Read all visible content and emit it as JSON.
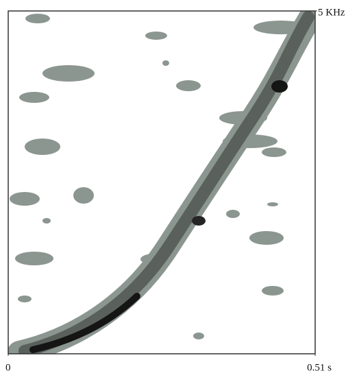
{
  "chart_data": {
    "type": "spectrogram",
    "xlim": [
      0,
      0.51
    ],
    "xticks": [
      0,
      {
        "value": 0.51,
        "label": "0.51 s"
      }
    ],
    "ylim": [
      0,
      5
    ],
    "yticks": [
      {
        "value": 5,
        "label": "5 KHz"
      }
    ]
  }
}
